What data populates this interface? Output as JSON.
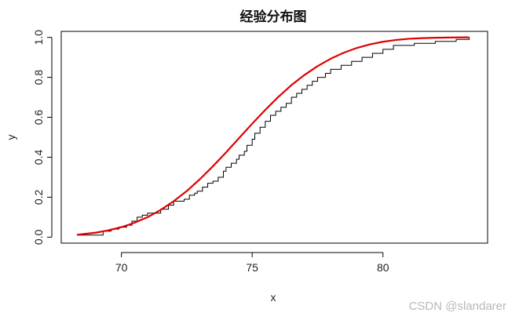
{
  "chart_data": {
    "type": "line",
    "title": "经验分布图",
    "xlabel": "x",
    "ylabel": "y",
    "xlim": [
      67.7,
      84.0
    ],
    "ylim": [
      -0.03,
      1.03
    ],
    "xticks": [
      70,
      75,
      80
    ],
    "xtick_labels": [
      "70",
      "75",
      "80"
    ],
    "yticks": [
      0.0,
      0.2,
      0.4,
      0.6,
      0.8,
      1.0
    ],
    "ytick_labels": [
      "0.0",
      "0.2",
      "0.4",
      "0.6",
      "0.8",
      "1.0"
    ],
    "grid": false,
    "series": [
      {
        "kind": "step",
        "color": "#000000",
        "x": [
          68.3,
          69.3,
          69.6,
          69.9,
          70.2,
          70.4,
          70.6,
          70.8,
          71.0,
          71.5,
          71.8,
          72.0,
          72.4,
          72.6,
          72.8,
          72.9,
          73.1,
          73.3,
          73.5,
          73.7,
          73.9,
          74.0,
          74.2,
          74.4,
          74.5,
          74.7,
          74.8,
          75.0,
          75.1,
          75.3,
          75.5,
          75.7,
          75.9,
          76.1,
          76.3,
          76.5,
          76.7,
          76.9,
          77.1,
          77.3,
          77.5,
          77.8,
          78.0,
          78.4,
          78.8,
          79.2,
          79.6,
          80.0,
          80.4,
          81.2,
          82.0,
          82.8,
          83.3
        ],
        "y": [
          0.01,
          0.03,
          0.04,
          0.05,
          0.06,
          0.08,
          0.1,
          0.11,
          0.12,
          0.14,
          0.16,
          0.18,
          0.19,
          0.21,
          0.22,
          0.23,
          0.25,
          0.27,
          0.28,
          0.3,
          0.33,
          0.35,
          0.37,
          0.39,
          0.41,
          0.43,
          0.46,
          0.49,
          0.52,
          0.55,
          0.58,
          0.61,
          0.63,
          0.65,
          0.67,
          0.7,
          0.72,
          0.74,
          0.76,
          0.78,
          0.8,
          0.82,
          0.84,
          0.86,
          0.88,
          0.9,
          0.92,
          0.94,
          0.96,
          0.97,
          0.98,
          0.99,
          1.0
        ]
      },
      {
        "kind": "line",
        "color": "#e00000",
        "x": [
          68.3,
          69.0,
          69.5,
          70.0,
          70.5,
          71.0,
          71.5,
          72.0,
          72.5,
          73.0,
          73.5,
          74.0,
          74.5,
          75.0,
          75.5,
          76.0,
          76.5,
          77.0,
          77.5,
          78.0,
          78.5,
          79.0,
          79.5,
          80.0,
          80.5,
          81.0,
          81.5,
          82.0,
          82.5,
          83.0,
          83.3
        ],
        "y": [
          0.012,
          0.022,
          0.034,
          0.05,
          0.072,
          0.1,
          0.136,
          0.18,
          0.231,
          0.29,
          0.355,
          0.424,
          0.496,
          0.568,
          0.637,
          0.702,
          0.761,
          0.812,
          0.856,
          0.893,
          0.923,
          0.947,
          0.965,
          0.978,
          0.987,
          0.993,
          0.996,
          0.998,
          0.999,
          1.0,
          1.0
        ]
      }
    ]
  },
  "watermark": "CSDN @slandarer"
}
